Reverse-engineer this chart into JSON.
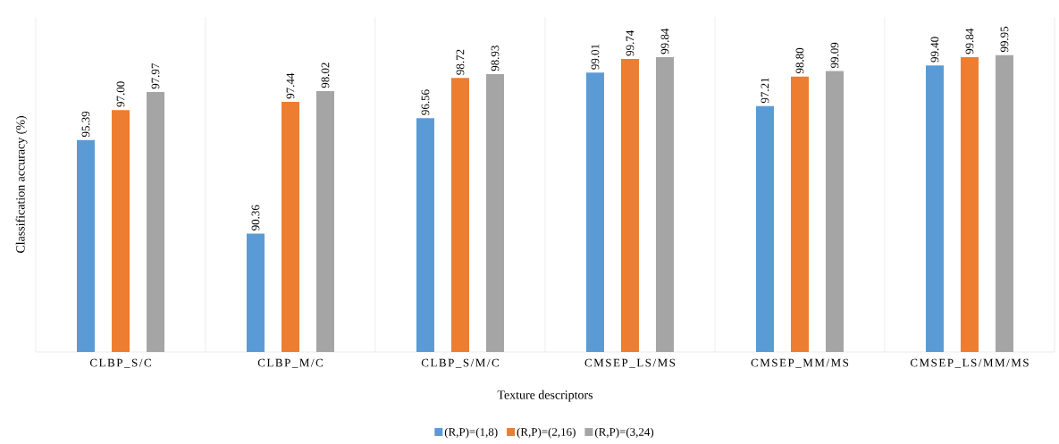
{
  "chart_data": {
    "type": "bar",
    "xlabel": "Texture descriptors",
    "ylabel": "Classification accuracy (%)",
    "categories": [
      "CLBP_S/C",
      "CLBP_M/C",
      "CLBP_S/M/C",
      "CMSEP_LS/MS",
      "CMSEP_MM/MS",
      "CMSEP_LS/MM/MS"
    ],
    "series": [
      {
        "name": "(R,P)=(1,8)",
        "color": "#5b9bd5",
        "values": [
          95.39,
          90.36,
          96.56,
          99.01,
          97.21,
          99.4
        ],
        "value_labels": [
          "95.39",
          "90.36",
          "96.56",
          "99.01",
          "97.21",
          "99.40"
        ]
      },
      {
        "name": "(R,P)=(2,16)",
        "color": "#ed7d31",
        "values": [
          97.0,
          97.44,
          98.72,
          99.74,
          98.8,
          99.84
        ],
        "value_labels": [
          "97.00",
          "97.44",
          "98.72",
          "99.74",
          "98.80",
          "99.84"
        ]
      },
      {
        "name": "(R,P)=(3,24)",
        "color": "#a5a5a5",
        "values": [
          97.97,
          98.02,
          98.93,
          99.84,
          99.09,
          99.95
        ],
        "value_labels": [
          "97.97",
          "98.02",
          "98.93",
          "99.84",
          "99.09",
          "99.95"
        ]
      }
    ],
    "ylim": [
      84,
      102
    ],
    "grid": "x",
    "legend": "bottom",
    "tick_labels": "x"
  }
}
